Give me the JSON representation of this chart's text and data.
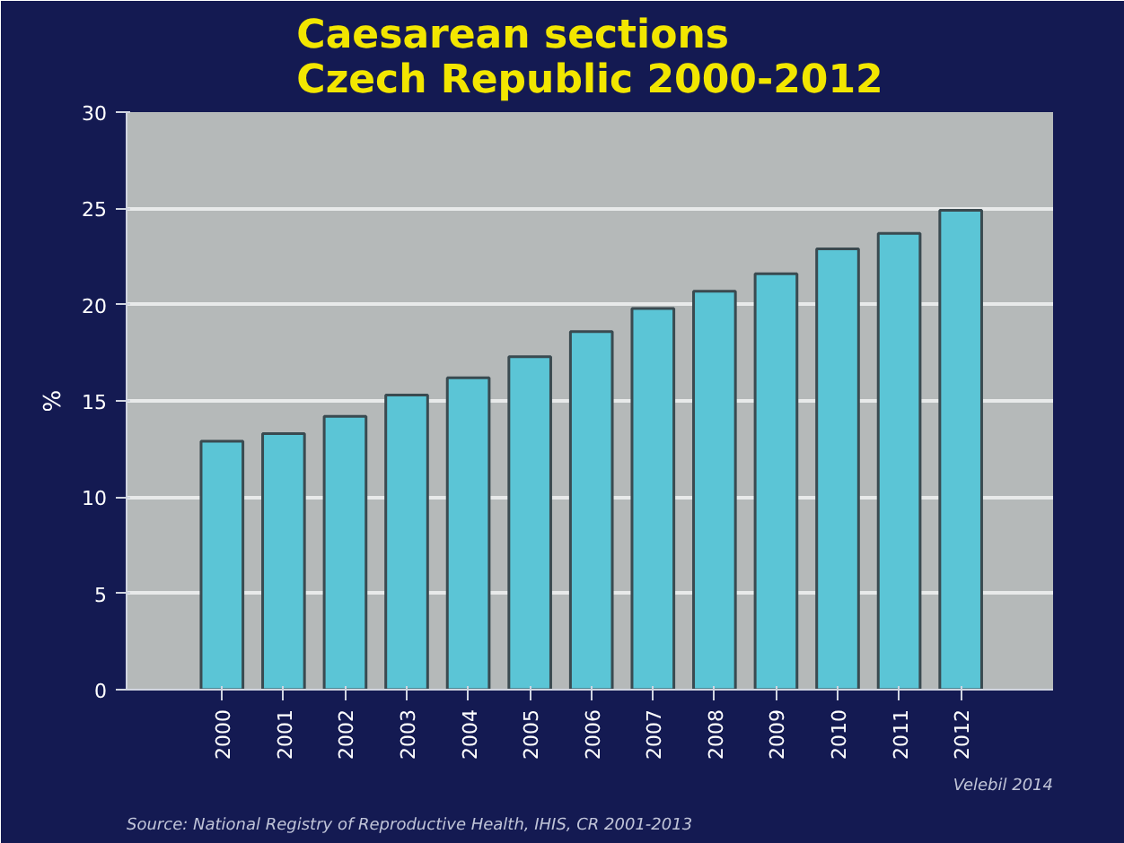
{
  "chart_data": {
    "type": "bar",
    "title": "Caesarean sections\nCzech Republic 2000-2012",
    "ylabel": "%",
    "categories": [
      "2000",
      "2001",
      "2002",
      "2003",
      "2004",
      "2005",
      "2006",
      "2007",
      "2008",
      "2009",
      "2010",
      "2011",
      "2012"
    ],
    "values": [
      12.9,
      13.3,
      14.2,
      15.3,
      16.2,
      17.3,
      18.6,
      19.8,
      20.7,
      21.6,
      22.9,
      23.7,
      24.9
    ],
    "color": "#5bc5d6",
    "ylim": [
      0,
      30
    ],
    "yticks": [
      0,
      5,
      10,
      15,
      20,
      25,
      30
    ],
    "grid": "y",
    "annotations": [
      "Source: National Registry of Reproductive Health, IHIS, CR 2001-2013",
      "Velebil 2014"
    ]
  }
}
